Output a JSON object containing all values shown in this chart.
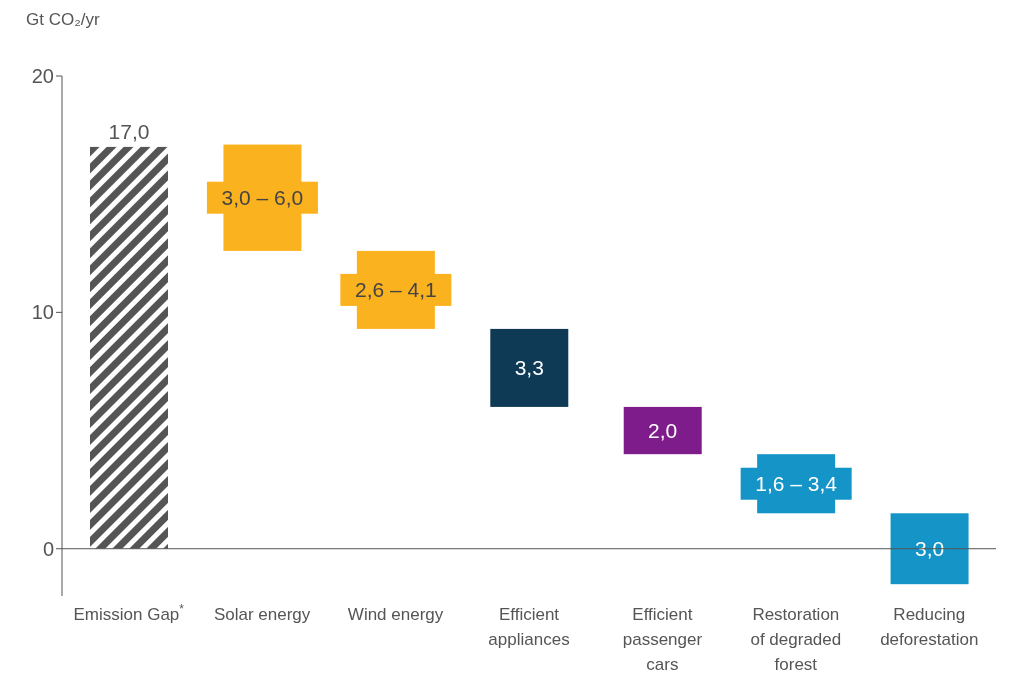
{
  "chart_data": {
    "type": "bar",
    "ylabel": "Gt CO₂/yr",
    "categories": [
      "Emission Gap$^{*}$",
      "Solar energy",
      "Wind energy",
      "Efficient appliances",
      "Efficient passenger cars",
      "Restoration of degraded forest",
      "Reducing deforestation"
    ],
    "base": [
      0,
      12.6,
      9.3,
      6.0,
      4.0,
      1.5,
      -1.5
    ],
    "values": [
      17.0,
      4.5,
      3.3,
      3.3,
      2.0,
      2.5,
      3.0
    ],
    "colors": [
      "#555555",
      "#fbb21f",
      "#fbb21f",
      "#0f3a56",
      "#7f1c8c",
      "#1594c8",
      "#1594c8"
    ],
    "value_labels": [
      "17,0",
      null,
      null,
      "3,3",
      "2,0",
      null,
      "3,0"
    ],
    "annotations": [
      "3,0 – 6,0",
      "2,6 – 4,1",
      "1,6 – 3,4"
    ],
    "ref_lines": [
      {
        "axis": "y",
        "value": 0
      }
    ],
    "ylim": [
      -2,
      20
    ],
    "yticks": [
      0,
      10,
      20
    ],
    "grid": false,
    "legend": false
  }
}
